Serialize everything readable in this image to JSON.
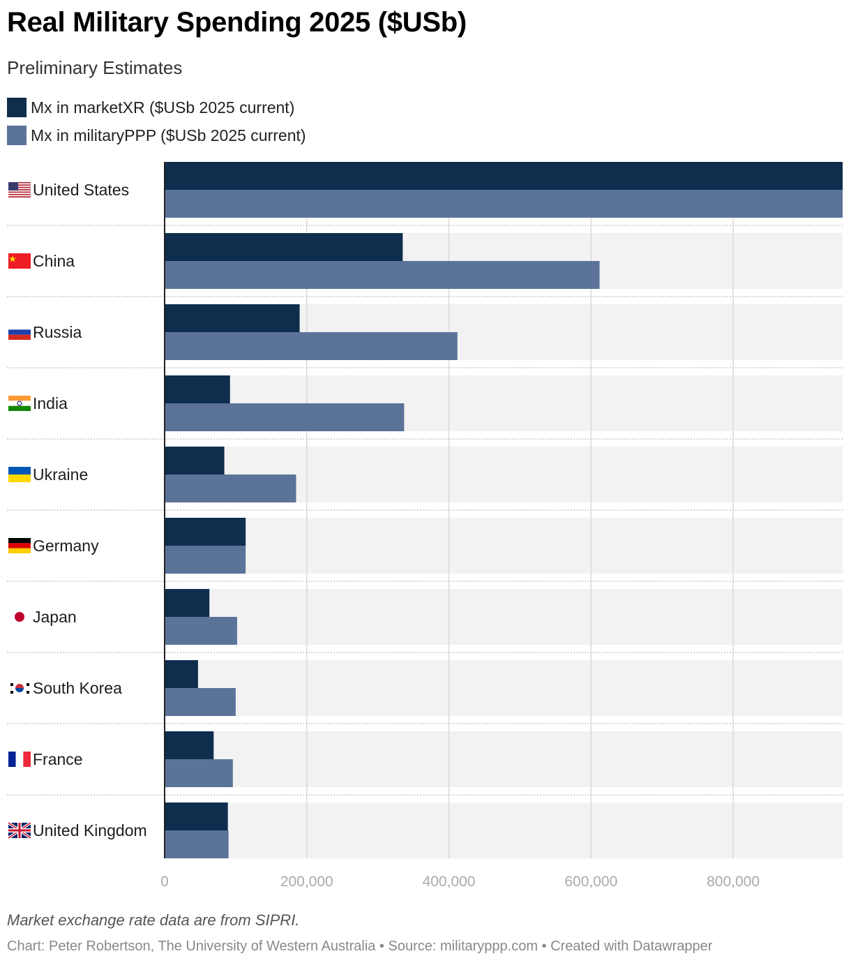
{
  "header": {
    "title": "Real Military Spending 2025 ($USb)",
    "subtitle": "Preliminary Estimates"
  },
  "legend": [
    {
      "label": "Mx in marketXR ($USb 2025 current)",
      "color": "#0f2d4d"
    },
    {
      "label": "Mx in militaryPPP ($USb 2025 current)",
      "color": "#5b7399"
    }
  ],
  "footer": {
    "note": "Market exchange rate data are from SIPRI.",
    "credit": "Chart: Peter Robertson, The University of Western Australia • Source: militaryppp.com • Created with Datawrapper"
  },
  "chart_data": {
    "type": "bar",
    "orientation": "horizontal",
    "title": "Real Military Spending 2025 ($USb)",
    "subtitle": "Preliminary Estimates",
    "categories": [
      "United States",
      "China",
      "Russia",
      "India",
      "Ukraine",
      "Germany",
      "Japan",
      "South Korea",
      "France",
      "United Kingdom"
    ],
    "flags": [
      "us-flag-icon",
      "china-flag-icon",
      "russia-flag-icon",
      "india-flag-icon",
      "ukraine-flag-icon",
      "germany-flag-icon",
      "japan-flag-icon",
      "south-korea-flag-icon",
      "france-flag-icon",
      "uk-flag-icon"
    ],
    "series": [
      {
        "name": "Mx in marketXR ($USb 2025 current)",
        "color": "#0f2d4d",
        "values": [
          954000,
          335000,
          190000,
          92000,
          84000,
          114000,
          63000,
          47000,
          69000,
          89000
        ]
      },
      {
        "name": "Mx in militaryPPP ($USb 2025 current)",
        "color": "#5b7399",
        "values": [
          954000,
          612000,
          412000,
          337000,
          185000,
          114000,
          102000,
          100000,
          96000,
          90000
        ]
      }
    ],
    "xlim": [
      0,
      954000
    ],
    "xticks": [
      0,
      200000,
      400000,
      600000,
      800000
    ],
    "xtick_labels": [
      "0",
      "200,000",
      "400,000",
      "600,000",
      "800,000"
    ],
    "grid": true,
    "legend_position": "top-left"
  }
}
